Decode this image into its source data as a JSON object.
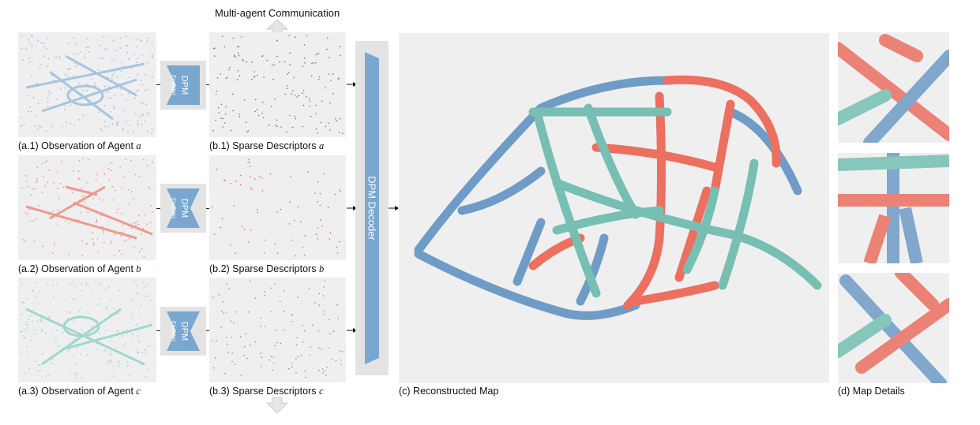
{
  "title": "Multi-agent Communication",
  "agents": [
    {
      "id": "a",
      "observation_caption_prefix": "(a.1) Observation of Agent",
      "descriptor_caption_prefix": "(b.1) Sparse Descriptors",
      "symbol": "a",
      "color": "#8fb7dc",
      "dot_color": "#666666"
    },
    {
      "id": "b",
      "observation_caption_prefix": "(a.2) Observation of Agent",
      "descriptor_caption_prefix": "(b.2) Sparse Descriptors",
      "symbol": "b",
      "color": "#f0857a",
      "dot_color": "#c0605a"
    },
    {
      "id": "c",
      "observation_caption_prefix": "(a.3) Observation of Agent",
      "descriptor_caption_prefix": "(b.3) Sparse Descriptors",
      "symbol": "c",
      "color": "#8ed2c6",
      "dot_color": "#5a9890"
    }
  ],
  "encoder": {
    "label": "DPM",
    "sublabel": "Encoder",
    "color": "#7aa7cf"
  },
  "decoder": {
    "label": "DPM Decoder",
    "color": "#7aa7cf"
  },
  "map": {
    "caption": "(c) Reconstructed Map",
    "colors": {
      "blue": "#6e9cc6",
      "red": "#ec6f60",
      "teal": "#76bfb2"
    }
  },
  "details": {
    "caption": "(d) Map Details"
  }
}
